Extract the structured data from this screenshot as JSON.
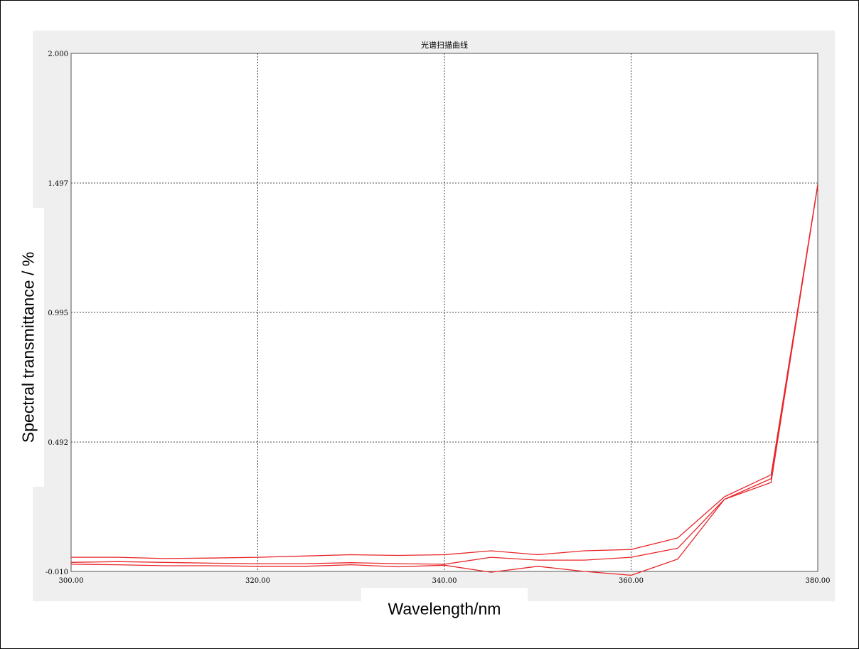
{
  "chart_data": {
    "type": "line",
    "title": "光谱扫描曲线",
    "xlabel": "Wavelength/nm",
    "ylabel": "Spectral transmittance / %",
    "xlim": [
      300,
      380
    ],
    "ylim": [
      -0.01,
      2.0
    ],
    "xticks": [
      "300.00",
      "320.00",
      "340.00",
      "360.00",
      "380.00"
    ],
    "yticks": [
      "2.000",
      "1.497",
      "0.995",
      "0.492",
      "-0.010"
    ],
    "grid": true,
    "line_color": "#e8262a",
    "x": [
      300,
      305,
      310,
      315,
      320,
      325,
      330,
      335,
      340,
      345,
      350,
      355,
      360,
      365,
      370,
      375,
      380
    ],
    "series": [
      {
        "values": [
          0.045,
          0.045,
          0.04,
          0.042,
          0.045,
          0.05,
          0.055,
          0.052,
          0.055,
          0.07,
          0.055,
          0.07,
          0.075,
          0.12,
          0.28,
          0.365,
          1.49
        ]
      },
      {
        "values": [
          0.025,
          0.028,
          0.025,
          0.022,
          0.02,
          0.02,
          0.024,
          0.02,
          0.018,
          0.045,
          0.034,
          0.034,
          0.045,
          0.08,
          0.27,
          0.35,
          1.49
        ]
      },
      {
        "values": [
          0.018,
          0.016,
          0.012,
          0.012,
          0.01,
          0.01,
          0.016,
          0.008,
          0.014,
          -0.013,
          0.01,
          -0.01,
          -0.025,
          0.038,
          0.27,
          0.335,
          1.49
        ]
      }
    ]
  }
}
